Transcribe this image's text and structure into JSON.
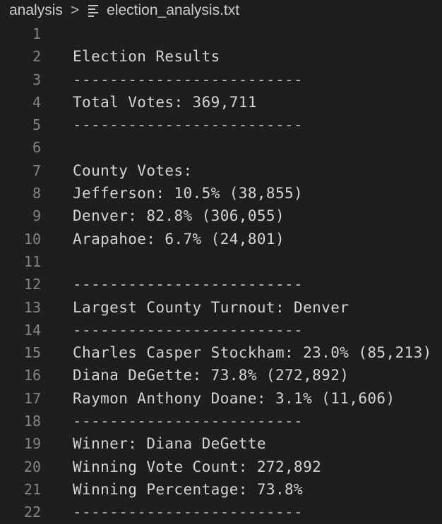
{
  "breadcrumb": {
    "folder": "analysis",
    "separator": ">",
    "file_icon": "text-file-icon",
    "file": "election_analysis.txt"
  },
  "editor": {
    "lines": [
      {
        "number": "1",
        "text": ""
      },
      {
        "number": "2",
        "text": "Election Results"
      },
      {
        "number": "3",
        "text": "-------------------------"
      },
      {
        "number": "4",
        "text": "Total Votes: 369,711"
      },
      {
        "number": "5",
        "text": "-------------------------"
      },
      {
        "number": "6",
        "text": ""
      },
      {
        "number": "7",
        "text": "County Votes:"
      },
      {
        "number": "8",
        "text": "Jefferson: 10.5% (38,855)"
      },
      {
        "number": "9",
        "text": "Denver: 82.8% (306,055)"
      },
      {
        "number": "10",
        "text": "Arapahoe: 6.7% (24,801)"
      },
      {
        "number": "11",
        "text": ""
      },
      {
        "number": "12",
        "text": "-------------------------"
      },
      {
        "number": "13",
        "text": "Largest County Turnout: Denver"
      },
      {
        "number": "14",
        "text": "-------------------------"
      },
      {
        "number": "15",
        "text": "Charles Casper Stockham: 23.0% (85,213)"
      },
      {
        "number": "16",
        "text": "Diana DeGette: 73.8% (272,892)"
      },
      {
        "number": "17",
        "text": "Raymon Anthony Doane: 3.1% (11,606)"
      },
      {
        "number": "18",
        "text": "-------------------------"
      },
      {
        "number": "19",
        "text": "Winner: Diana DeGette"
      },
      {
        "number": "20",
        "text": "Winning Vote Count: 272,892"
      },
      {
        "number": "21",
        "text": "Winning Percentage: 73.8%"
      },
      {
        "number": "22",
        "text": "-------------------------"
      }
    ]
  }
}
